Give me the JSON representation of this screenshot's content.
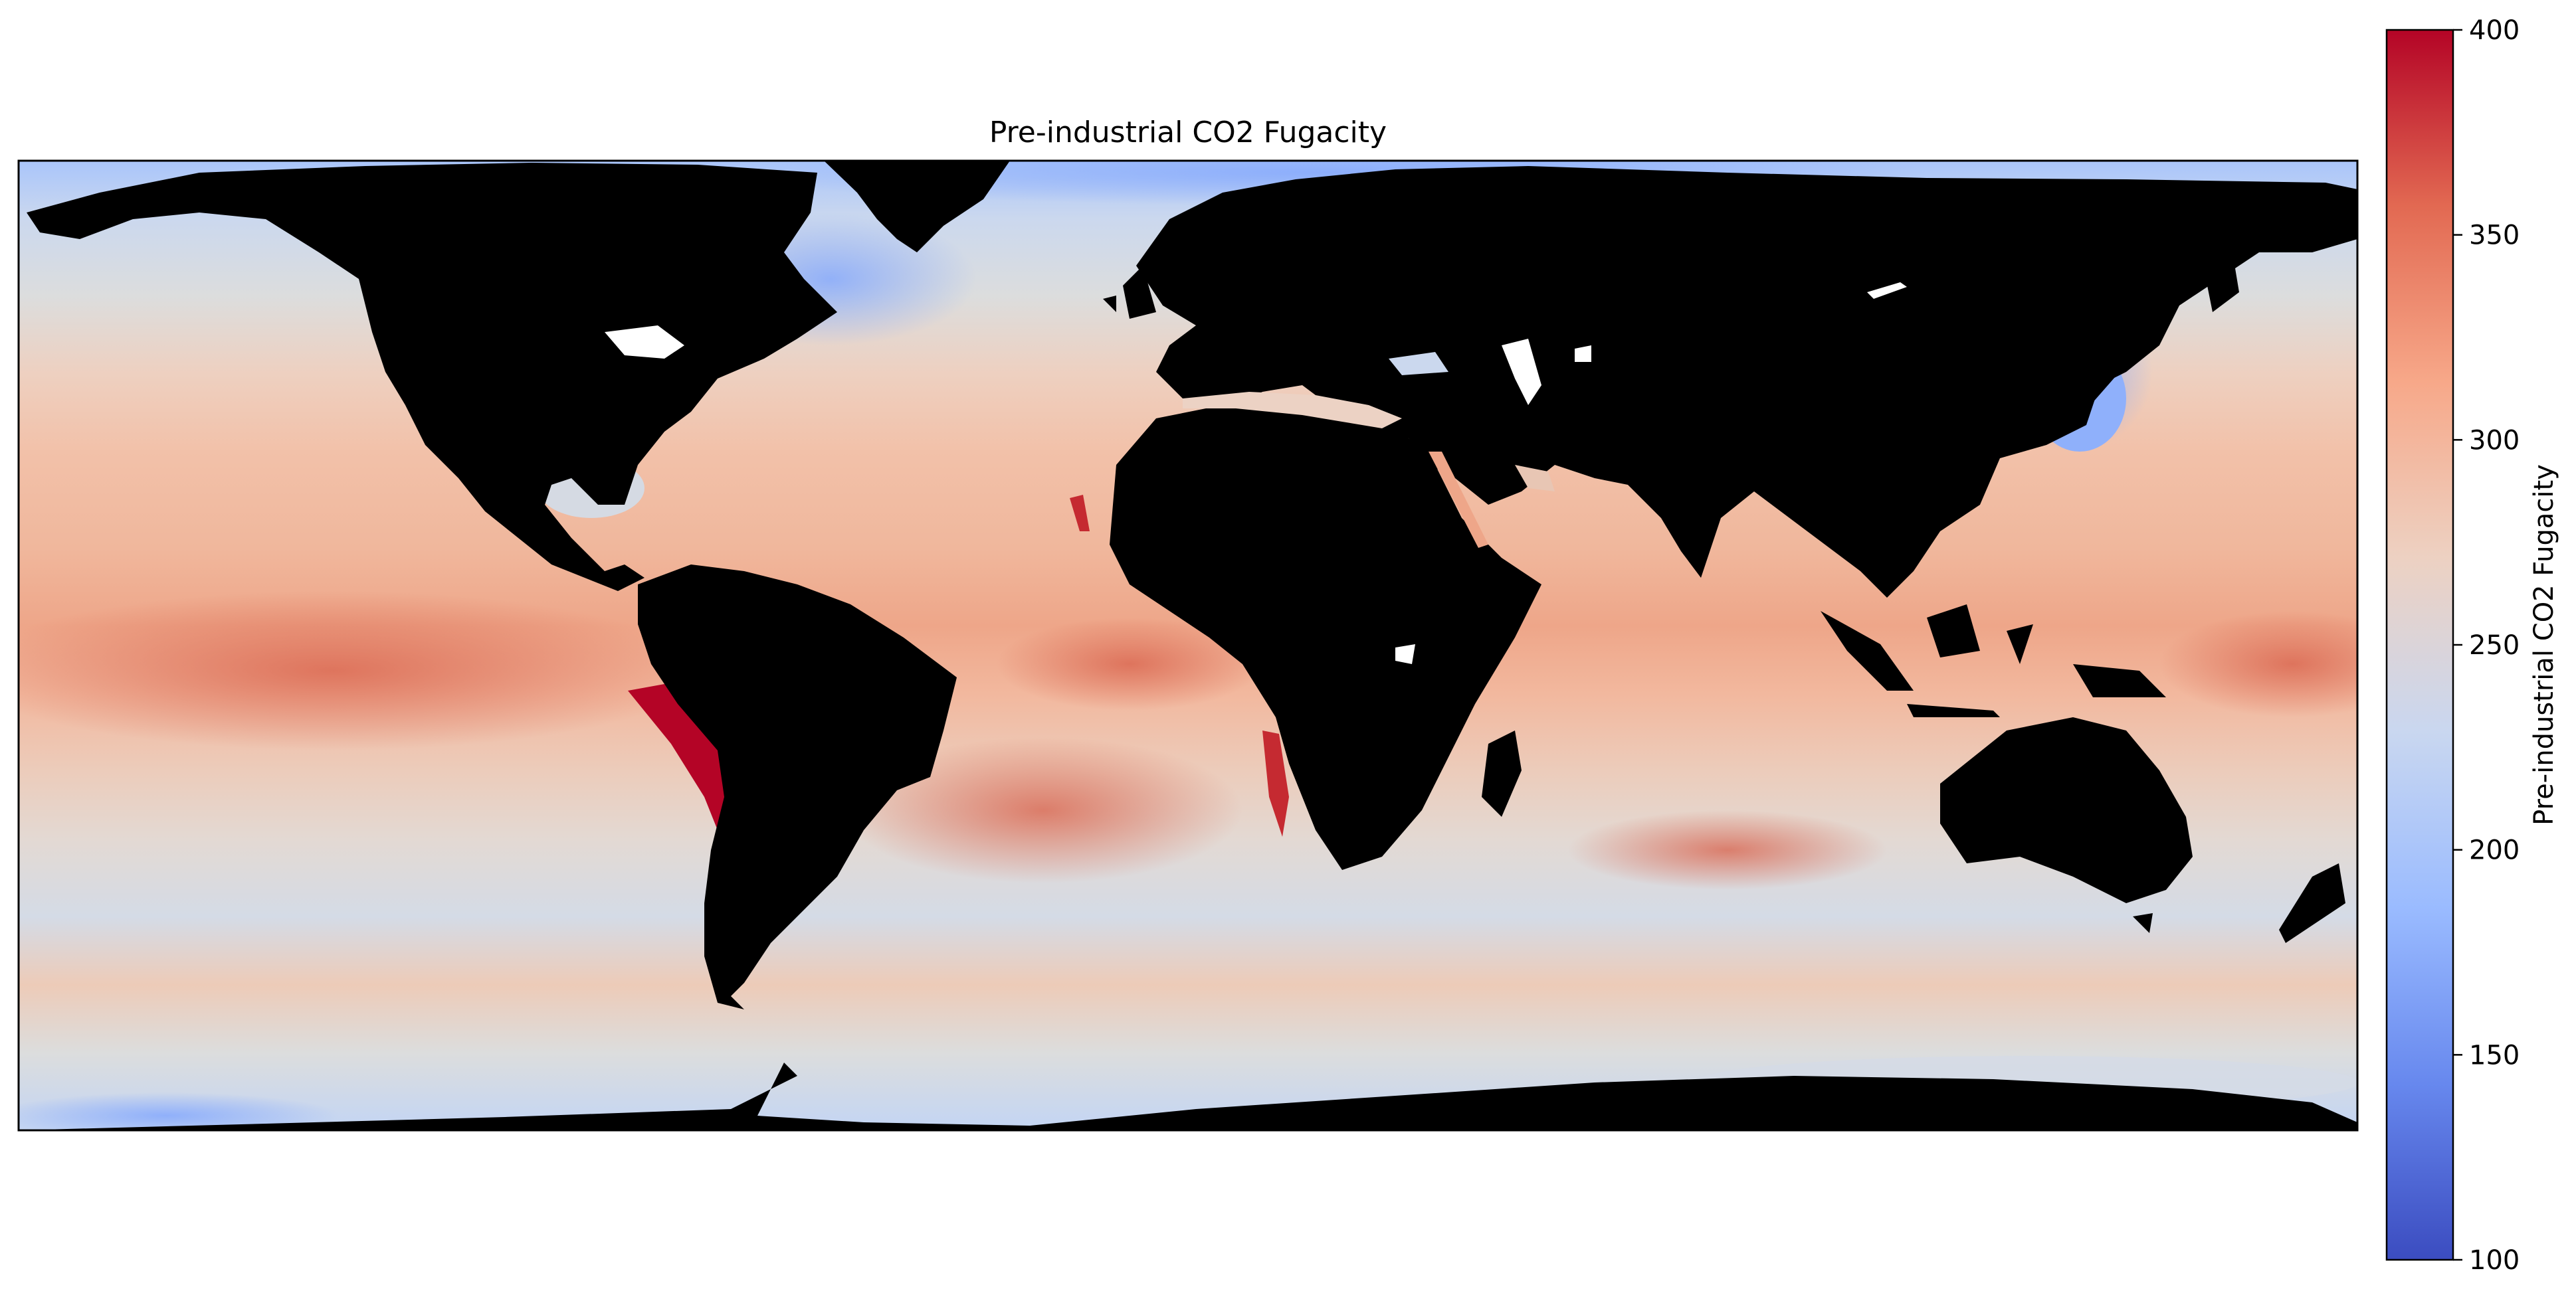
{
  "title": "Pre-industrial CO2 Fugacity",
  "projection": "PlateCarree",
  "colormap": "coolwarm",
  "land_color": "#000000",
  "lake_color": "#ffffff",
  "colorbar": {
    "label": "Pre-industrial CO2 Fugacity",
    "min": 100,
    "max": 400,
    "ticks": [
      {
        "value": 100,
        "label": "100"
      },
      {
        "value": 150,
        "label": "150"
      },
      {
        "value": 200,
        "label": "200"
      },
      {
        "value": 250,
        "label": "250"
      },
      {
        "value": 300,
        "label": "300"
      },
      {
        "value": 350,
        "label": "350"
      },
      {
        "value": 400,
        "label": "400"
      }
    ],
    "colors": [
      "#3b4cc0",
      "#6788ee",
      "#9abbff",
      "#c9d7f0",
      "#edd1c2",
      "#f7a889",
      "#e26952",
      "#b40426"
    ]
  }
}
